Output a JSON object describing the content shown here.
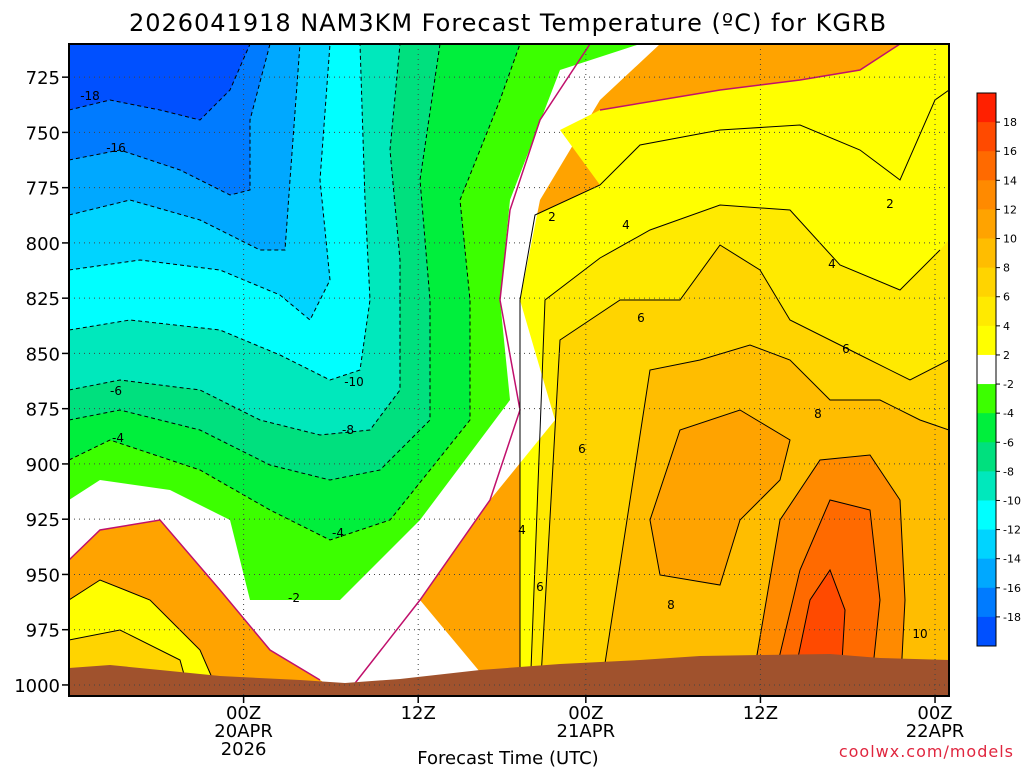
{
  "chart_data": {
    "type": "contour",
    "title": "2026041918 NAM3KM Forecast Temperature (ºC) for KGRB",
    "xlabel": "Forecast Time (UTC)",
    "ylabel": "",
    "credit": "coolwx.com/models",
    "y_axis": {
      "unit": "hPa",
      "inverted": true,
      "range": [
        1005,
        710
      ],
      "ticks": [
        "725",
        "750",
        "775",
        "800",
        "825",
        "850",
        "875",
        "900",
        "925",
        "950",
        "975",
        "1000"
      ]
    },
    "x_axis": {
      "range_hours": [
        -13,
        113
      ],
      "ticks": [
        {
          "hour": 12,
          "label": "00Z",
          "date": "20APR",
          "year": "2026"
        },
        {
          "hour": 37,
          "label": "12Z"
        },
        {
          "hour": 61,
          "label": "00Z",
          "date": "21APR"
        },
        {
          "hour": 86,
          "label": "12Z"
        },
        {
          "hour": 111,
          "label": "00Z",
          "date": "22APR"
        }
      ]
    },
    "grid": true,
    "legend_position": "right",
    "colorbar": {
      "labels": [
        "18",
        "16",
        "14",
        "12",
        "10",
        "8",
        "6",
        "4",
        "2",
        "-2",
        "-4",
        "-6",
        "-8",
        "-10",
        "-12",
        "-14",
        "-16",
        "-18"
      ],
      "colors": [
        "#ff2000",
        "#ff4a00",
        "#ff6a00",
        "#ff8a00",
        "#ffa300",
        "#ffbd00",
        "#ffd400",
        "#ffea00",
        "#ffff00",
        "#ffffff",
        "#3cff00",
        "#00ef3c",
        "#00e07e",
        "#00e8bc",
        "#00ffff",
        "#00d4ff",
        "#00a8ff",
        "#007bff",
        "#0050ff"
      ]
    },
    "contour_labels": [
      "-18",
      "-16",
      "-10",
      "-8",
      "-6",
      "-4",
      "-4",
      "-2",
      "2",
      "2",
      "4",
      "4",
      "4",
      "6",
      "6",
      "6",
      "6",
      "8",
      "8",
      "10"
    ]
  }
}
